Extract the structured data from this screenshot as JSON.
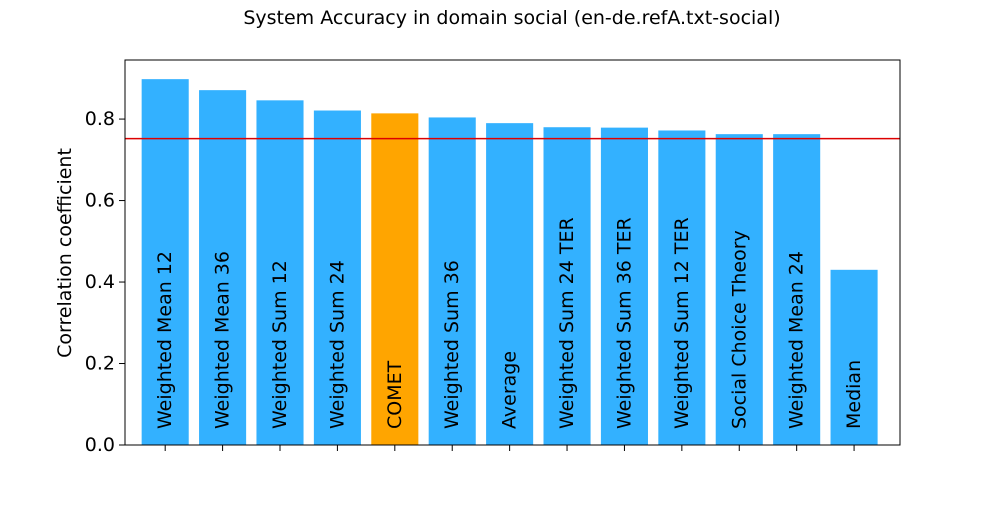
{
  "chart_data": {
    "type": "bar",
    "title": "System Accuracy in domain social (en-de.refA.txt-social)",
    "xlabel": "",
    "ylabel": "Correlation coefficient",
    "ylim": [
      0,
      0.945
    ],
    "yticks": [
      0.0,
      0.2,
      0.4,
      0.6,
      0.8
    ],
    "ytick_labels": [
      "0.0",
      "0.2",
      "0.4",
      "0.6",
      "0.8"
    ],
    "categories": [
      "Weighted Mean 12",
      "Weighted Mean 36",
      "Weighted Sum 12",
      "Weighted Sum 24",
      "COMET",
      "Weighted Sum 36",
      "Average",
      "Weighted Sum 24 TER",
      "Weighted Sum 36 TER",
      "Weighted Sum 12 TER",
      "Social Choice Theory",
      "Weighted Mean 24",
      "Median"
    ],
    "values": [
      0.898,
      0.871,
      0.846,
      0.821,
      0.814,
      0.804,
      0.79,
      0.78,
      0.779,
      0.772,
      0.763,
      0.763,
      0.43
    ],
    "highlight_category": "COMET",
    "reference_line": 0.752,
    "grid": false,
    "colors": {
      "bar": "#33b1ff",
      "highlight": "#ffa500",
      "reference_line": "#dd0000",
      "axis": "#000000"
    }
  }
}
